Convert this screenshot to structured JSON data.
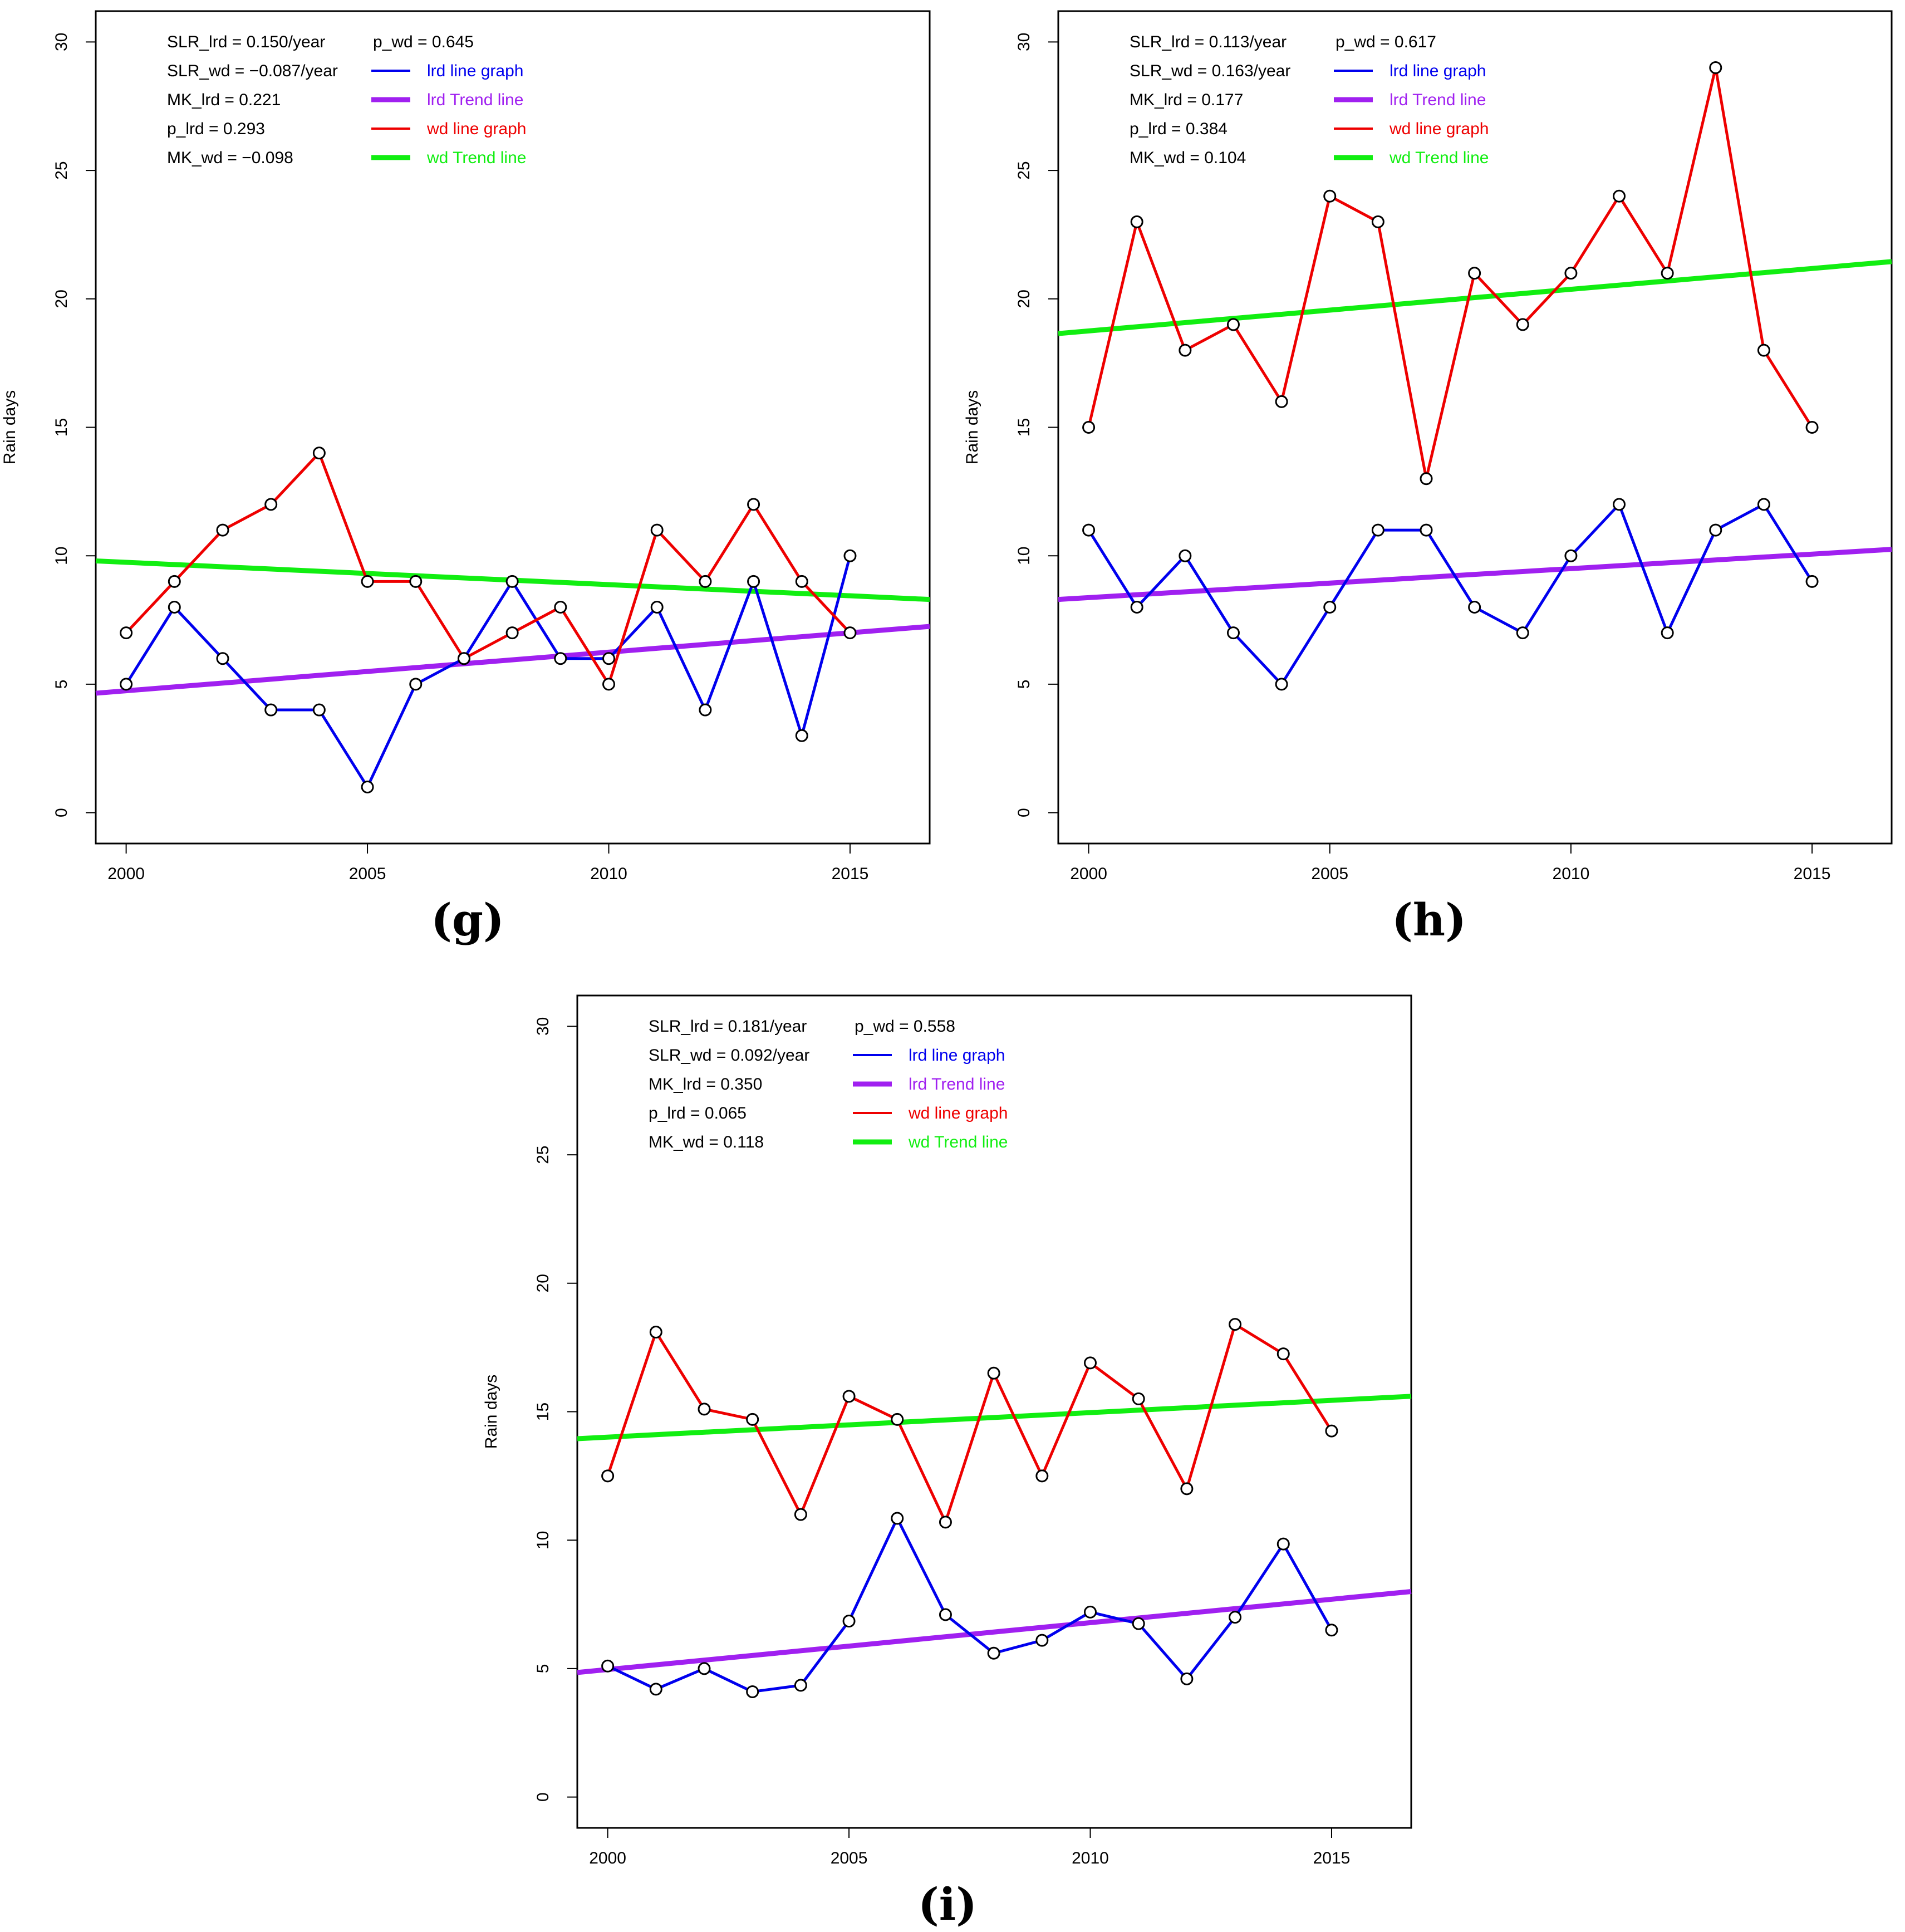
{
  "chart_data": [
    {
      "panel": "(g)",
      "type": "line",
      "ylabel": "Rain days",
      "xlabel": "",
      "xlim": [
        1999.37,
        2016.65
      ],
      "ylim": [
        -1.2,
        31.2
      ],
      "x_ticks": [
        "2000",
        "2005",
        "2010",
        "2015"
      ],
      "y_ticks": [
        "0",
        "5",
        "10",
        "15",
        "20",
        "25",
        "30"
      ],
      "x": [
        2000,
        2001,
        2002,
        2003,
        2004,
        2005,
        2006,
        2007,
        2008,
        2009,
        2010,
        2011,
        2012,
        2013,
        2014,
        2015
      ],
      "series": [
        {
          "name": "lrd line graph",
          "color": "#0000ee",
          "values": [
            5,
            8,
            6,
            4,
            4,
            1,
            5,
            6,
            9,
            6,
            6,
            8,
            4,
            9,
            3,
            10
          ]
        },
        {
          "name": "wd line graph",
          "color": "#ee0000",
          "values": [
            7,
            9,
            11,
            12,
            14,
            9,
            9,
            6,
            7,
            8,
            5,
            11,
            9,
            12,
            9,
            7
          ]
        }
      ],
      "trend_lines": [
        {
          "name": "lrd Trend line",
          "color": "#a020f0",
          "start": [
            1999.37,
            4.65
          ],
          "end": [
            2016.65,
            7.25
          ]
        },
        {
          "name": "wd Trend line",
          "color": "#11ee11",
          "start": [
            1999.37,
            9.8
          ],
          "end": [
            2016.65,
            8.3
          ]
        }
      ],
      "stats_left": [
        "SLR_lrd = 0.150/year",
        "SLR_wd = −0.087/year",
        "MK_lrd = 0.221",
        "p_lrd = 0.293",
        "MK_wd = −0.098"
      ],
      "stats_right": "p_wd = 0.645",
      "legend": [
        {
          "label": "lrd line graph",
          "color": "#0000ee",
          "thick": false
        },
        {
          "label": "lrd Trend line",
          "color": "#a020f0",
          "thick": true
        },
        {
          "label": "wd line graph",
          "color": "#ee0000",
          "thick": false
        },
        {
          "label": "wd Trend line",
          "color": "#11ee11",
          "thick": true
        }
      ]
    },
    {
      "panel": "(h)",
      "type": "line",
      "ylabel": "Rain days",
      "xlabel": "",
      "xlim": [
        1999.37,
        2016.65
      ],
      "ylim": [
        -1.2,
        31.2
      ],
      "x_ticks": [
        "2000",
        "2005",
        "2010",
        "2015"
      ],
      "y_ticks": [
        "0",
        "5",
        "10",
        "15",
        "20",
        "25",
        "30"
      ],
      "x": [
        2000,
        2001,
        2002,
        2003,
        2004,
        2005,
        2006,
        2007,
        2008,
        2009,
        2010,
        2011,
        2012,
        2013,
        2014,
        2015
      ],
      "series": [
        {
          "name": "lrd line graph",
          "color": "#0000ee",
          "values": [
            11,
            8,
            10,
            7,
            5,
            8,
            11,
            11,
            8,
            7,
            10,
            12,
            7,
            11,
            12,
            9
          ]
        },
        {
          "name": "wd line graph",
          "color": "#ee0000",
          "values": [
            15,
            23,
            18,
            19,
            16,
            24,
            23,
            13,
            21,
            19,
            21,
            24,
            21,
            29,
            18,
            15
          ]
        }
      ],
      "trend_lines": [
        {
          "name": "lrd Trend line",
          "color": "#a020f0",
          "start": [
            1999.37,
            8.3
          ],
          "end": [
            2016.65,
            10.25
          ]
        },
        {
          "name": "wd Trend line",
          "color": "#11ee11",
          "start": [
            1999.37,
            18.65
          ],
          "end": [
            2016.65,
            21.45
          ]
        }
      ],
      "stats_left": [
        "SLR_lrd = 0.113/year",
        "SLR_wd = 0.163/year",
        "MK_lrd = 0.177",
        "p_lrd = 0.384",
        "MK_wd = 0.104"
      ],
      "stats_right": "p_wd = 0.617",
      "legend": [
        {
          "label": "lrd line graph",
          "color": "#0000ee",
          "thick": false
        },
        {
          "label": "lrd Trend line",
          "color": "#a020f0",
          "thick": true
        },
        {
          "label": "wd line graph",
          "color": "#ee0000",
          "thick": false
        },
        {
          "label": "wd Trend line",
          "color": "#11ee11",
          "thick": true
        }
      ]
    },
    {
      "panel": "(i)",
      "type": "line",
      "ylabel": "Rain days",
      "xlabel": "",
      "xlim": [
        1999.37,
        2016.65
      ],
      "ylim": [
        -1.2,
        31.2
      ],
      "x_ticks": [
        "2000",
        "2005",
        "2010",
        "2015"
      ],
      "y_ticks": [
        "0",
        "5",
        "10",
        "15",
        "20",
        "25",
        "30"
      ],
      "x": [
        2000,
        2001,
        2002,
        2003,
        2004,
        2005,
        2006,
        2007,
        2008,
        2009,
        2010,
        2011,
        2012,
        2013,
        2014,
        2015
      ],
      "series": [
        {
          "name": "lrd line graph",
          "color": "#0000ee",
          "values": [
            5.1,
            4.2,
            5.0,
            4.1,
            4.35,
            6.85,
            10.85,
            7.1,
            5.6,
            6.1,
            7.2,
            6.75,
            4.6,
            7.0,
            9.85,
            6.5
          ]
        },
        {
          "name": "wd line graph",
          "color": "#ee0000",
          "values": [
            12.5,
            18.1,
            15.1,
            14.7,
            11.0,
            15.6,
            14.7,
            10.7,
            16.5,
            12.5,
            16.9,
            15.5,
            12.0,
            18.4,
            17.25,
            14.25
          ]
        }
      ],
      "trend_lines": [
        {
          "name": "lrd Trend line",
          "color": "#a020f0",
          "start": [
            1999.37,
            4.85
          ],
          "end": [
            2016.65,
            8.0
          ]
        },
        {
          "name": "wd Trend line",
          "color": "#11ee11",
          "start": [
            1999.37,
            13.95
          ],
          "end": [
            2016.65,
            15.6
          ]
        }
      ],
      "stats_left": [
        "SLR_lrd = 0.181/year",
        "SLR_wd = 0.092/year",
        "MK_lrd = 0.350",
        "p_lrd = 0.065",
        "MK_wd = 0.118"
      ],
      "stats_right": "p_wd = 0.558",
      "legend": [
        {
          "label": "lrd line graph",
          "color": "#0000ee",
          "thick": false
        },
        {
          "label": "lrd Trend line",
          "color": "#a020f0",
          "thick": true
        },
        {
          "label": "wd line graph",
          "color": "#ee0000",
          "thick": false
        },
        {
          "label": "wd Trend line",
          "color": "#11ee11",
          "thick": true
        }
      ]
    }
  ]
}
